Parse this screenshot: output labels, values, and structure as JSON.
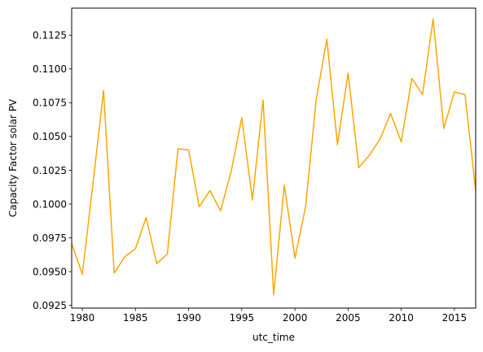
{
  "chart_data": {
    "type": "line",
    "title": "",
    "xlabel": "utc_time",
    "ylabel": "Capacity Factor solar PV",
    "xlim": [
      1979,
      2017
    ],
    "ylim": [
      0.0923,
      0.1145
    ],
    "grid": false,
    "legend": "none",
    "x_ticks": [
      1980,
      1985,
      1990,
      1995,
      2000,
      2005,
      2010,
      2015
    ],
    "x_tick_labels": [
      "1980",
      "1985",
      "1990",
      "1995",
      "2000",
      "2005",
      "2010",
      "2015"
    ],
    "y_ticks": [
      0.0925,
      0.095,
      0.0975,
      0.1,
      0.1025,
      0.105,
      0.1075,
      0.11,
      0.1125
    ],
    "y_tick_labels": [
      "0.0925",
      "0.0950",
      "0.0975",
      "0.1000",
      "0.1025",
      "0.1050",
      "0.1075",
      "0.1100",
      "0.1125"
    ],
    "series": [
      {
        "color": "#FFA500",
        "x": [
          1979,
          1980,
          1981,
          1982,
          1983,
          1984,
          1985,
          1986,
          1987,
          1988,
          1989,
          1990,
          1991,
          1992,
          1993,
          1994,
          1995,
          1996,
          1997,
          1998,
          1999,
          2000,
          2001,
          2002,
          2003,
          2004,
          2005,
          2006,
          2007,
          2008,
          2009,
          2010,
          2011,
          2012,
          2013,
          2014,
          2015,
          2016,
          2017
        ],
        "values": [
          0.0971,
          0.0948,
          0.1015,
          0.1084,
          0.0949,
          0.0961,
          0.0967,
          0.099,
          0.0956,
          0.0963,
          0.1041,
          0.104,
          0.0998,
          0.101,
          0.0995,
          0.1024,
          0.1064,
          0.1003,
          0.1077,
          0.0933,
          0.1014,
          0.096,
          0.0998,
          0.1077,
          0.1122,
          0.1044,
          0.1097,
          0.1027,
          0.1036,
          0.1048,
          0.1067,
          0.1046,
          0.1093,
          0.1081,
          0.1137,
          0.1056,
          0.1083,
          0.1081,
          0.101
        ]
      }
    ]
  }
}
